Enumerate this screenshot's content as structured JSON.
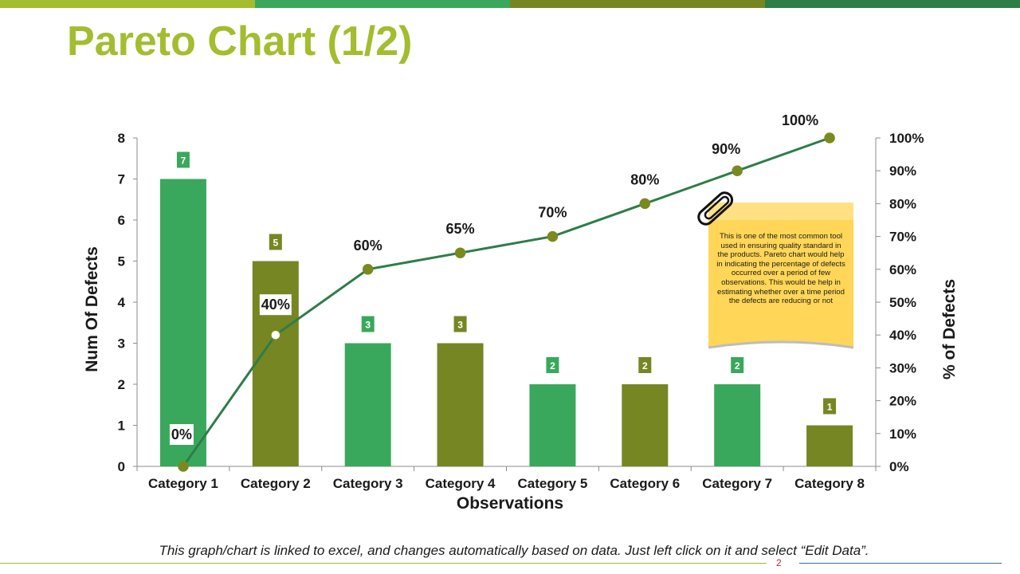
{
  "slide": {
    "title": "Pareto Chart (1/2)",
    "footer": "This graph/chart is linked to excel, and changes automatically based on data. Just left click on it and select “Edit Data”.",
    "page_number": "2",
    "note": "This is one of the most common tool used in ensuring quality standard in the products. Pareto chart would help in indicating the percentage of defects occurred over a period of few observations. This would be help in estimating whether over a time period the defects are reducing or not"
  },
  "colors": {
    "title": "#a3bd2f",
    "bar_green": "#3aa85c",
    "bar_olive": "#768623",
    "line": "#2e7d47",
    "marker": "#7a8a1f",
    "note": "#ffd657",
    "top_bar": [
      "#a3bd2f",
      "#3aa85c",
      "#768623",
      "#2e7d47"
    ]
  },
  "chart_data": {
    "type": "bar",
    "title": "",
    "xlabel": "Observations",
    "ylabel": "Num Of Defects",
    "y2label": "% of Defects",
    "categories": [
      "Category 1",
      "Category 2",
      "Category 3",
      "Category 4",
      "Category 5",
      "Category 6",
      "Category 7",
      "Category 8"
    ],
    "ylim": [
      0,
      8
    ],
    "yticks": [
      0,
      1,
      2,
      3,
      4,
      5,
      6,
      7,
      8
    ],
    "y2lim": [
      0,
      100
    ],
    "y2ticks": [
      "0%",
      "10%",
      "20%",
      "30%",
      "40%",
      "50%",
      "60%",
      "70%",
      "80%",
      "90%",
      "100%"
    ],
    "series": [
      {
        "name": "Num Of Defects",
        "kind": "bar",
        "values": [
          7,
          5,
          3,
          3,
          2,
          2,
          2,
          1
        ],
        "labels": [
          "7",
          "5",
          "3",
          "3",
          "2",
          "2",
          "2",
          "1"
        ]
      },
      {
        "name": "% of Defects",
        "kind": "line",
        "values": [
          0,
          40,
          60,
          65,
          70,
          80,
          90,
          100
        ],
        "labels": [
          "0%",
          "40%",
          "60%",
          "65%",
          "70%",
          "80%",
          "90%",
          "100%"
        ]
      }
    ]
  }
}
